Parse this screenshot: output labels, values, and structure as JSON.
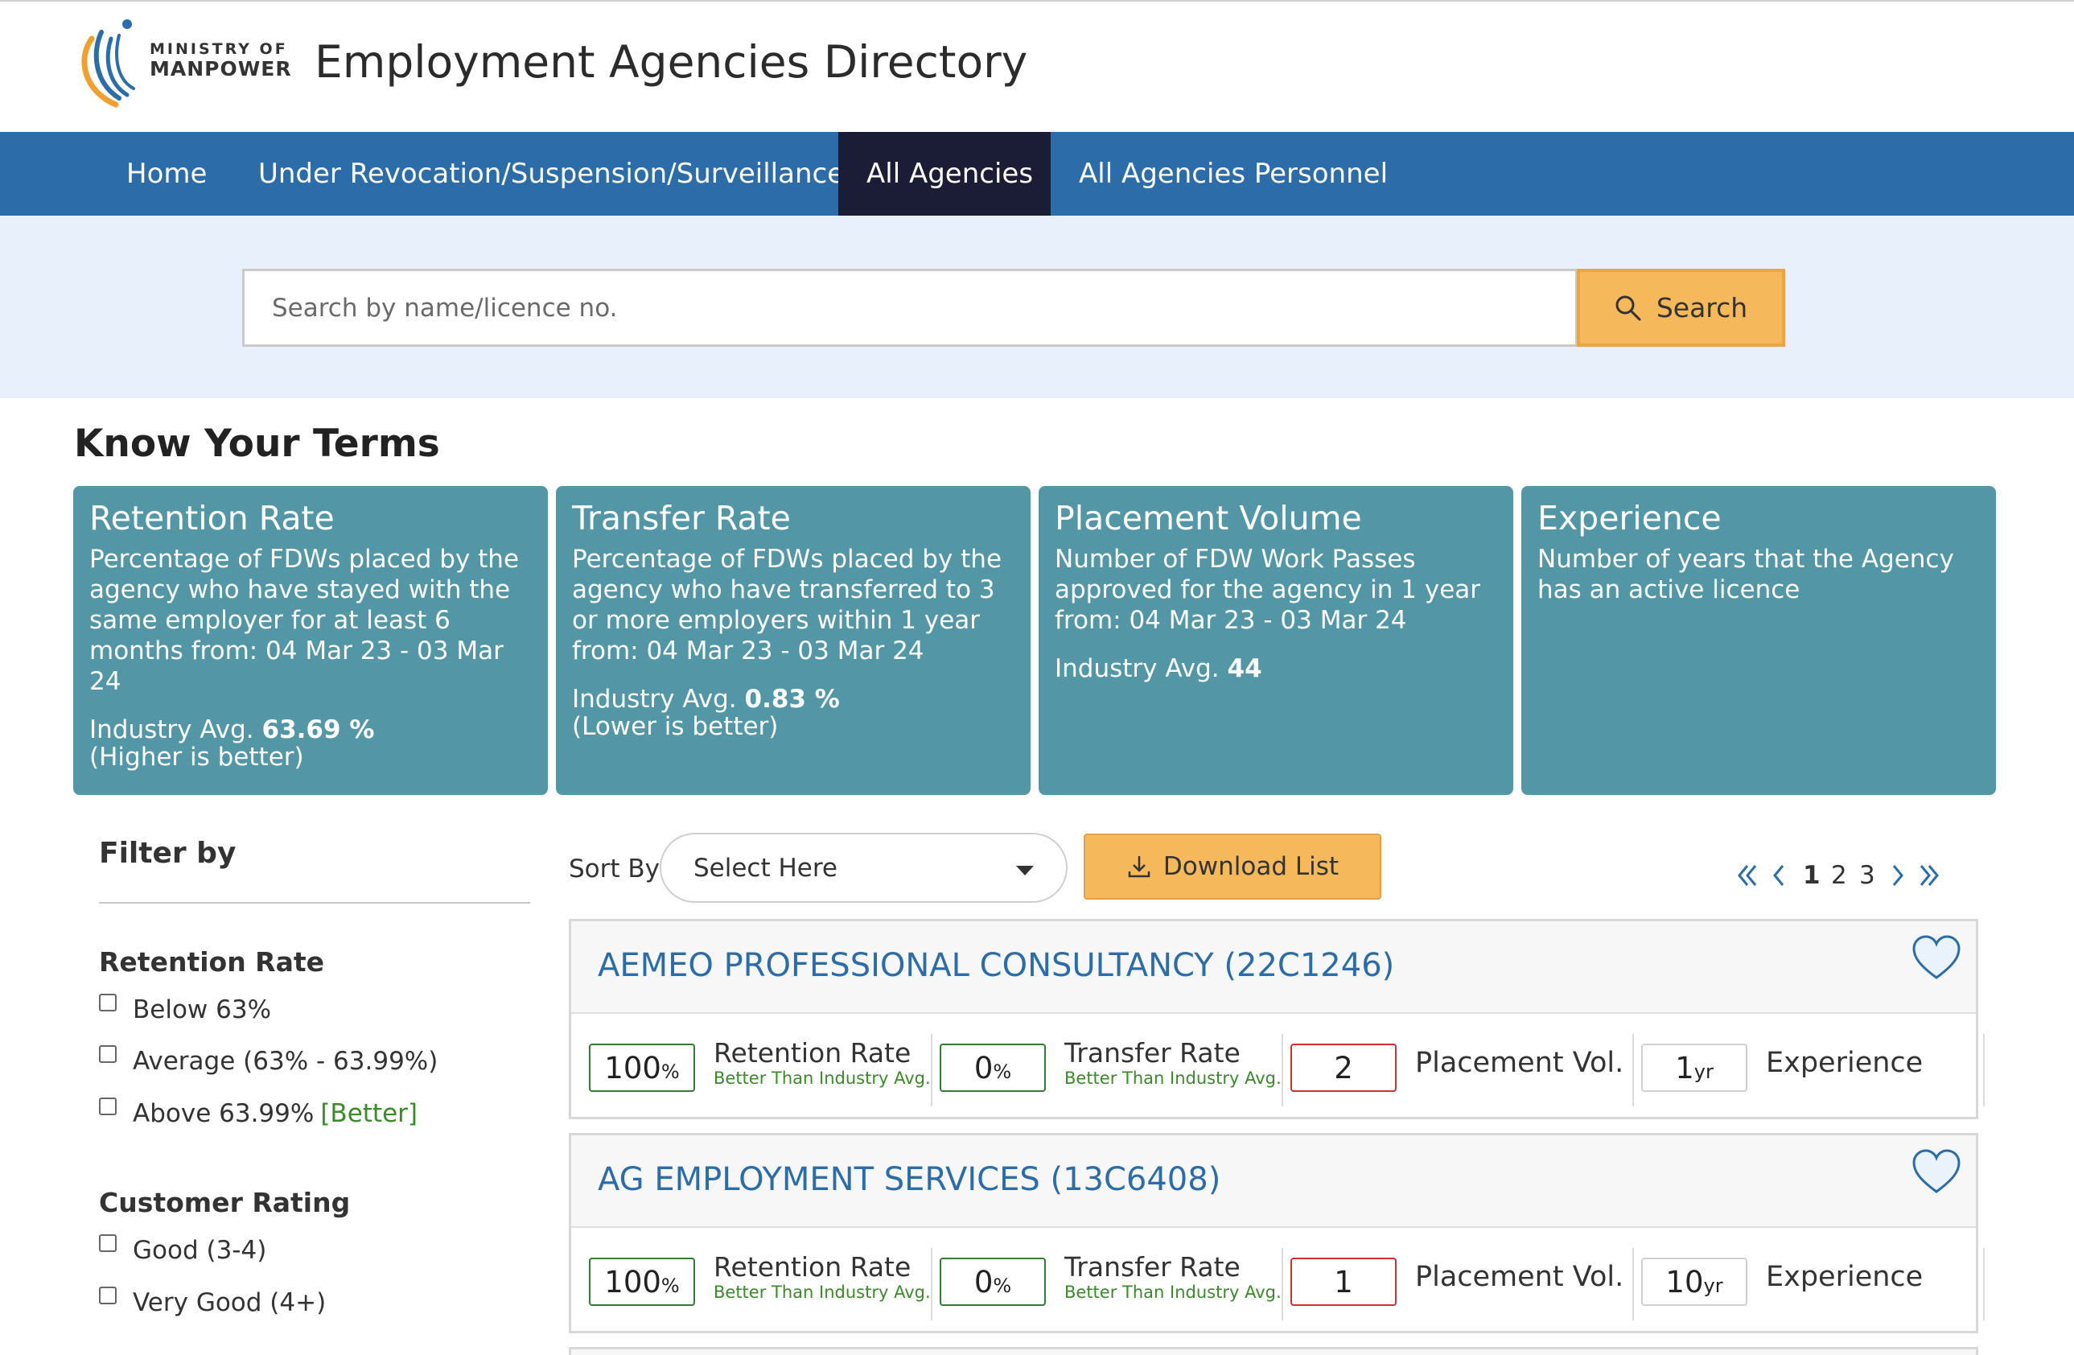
{
  "header": {
    "logo_line1": "MINISTRY OF",
    "logo_line2": "MANPOWER",
    "title": "Employment Agencies Directory"
  },
  "nav": {
    "items": [
      {
        "label": "Home"
      },
      {
        "label": "Under Revocation/Suspension/Surveillance"
      },
      {
        "label": "All Agencies"
      },
      {
        "label": "All Agencies Personnel"
      }
    ],
    "active": "All Agencies"
  },
  "search": {
    "placeholder": "Search by name/licence no.",
    "button_label": "Search",
    "icon": "search-icon"
  },
  "terms": {
    "section_title": "Know Your Terms",
    "cards": [
      {
        "title": "Retention Rate",
        "desc": "Percentage of FDWs placed by the agency who have stayed with the same employer for at least 6 months from: 04 Mar 23 - 03 Mar 24",
        "avg_label": "Industry Avg. ",
        "avg_value": "63.69 %",
        "note": "(Higher is better)"
      },
      {
        "title": "Transfer Rate",
        "desc": "Percentage of FDWs placed by the agency who have transferred to 3 or more employers within 1 year from: 04 Mar 23 - 03 Mar 24",
        "avg_label": "Industry Avg. ",
        "avg_value": "0.83 %",
        "note": "(Lower is better)"
      },
      {
        "title": "Placement Volume",
        "desc": "Number of FDW Work Passes approved for the agency in 1 year from: 04 Mar 23 - 03 Mar 24",
        "avg_label": "Industry Avg. ",
        "avg_value": "44",
        "note": ""
      },
      {
        "title": "Experience",
        "desc": "Number of years that the Agency has an active licence",
        "avg_label": "",
        "avg_value": "",
        "note": ""
      }
    ]
  },
  "filter": {
    "title": "Filter by",
    "groups": [
      {
        "title": "Retention Rate",
        "options": [
          {
            "label": "Below 63%",
            "extra": ""
          },
          {
            "label": "Average (63% - 63.99%)",
            "extra": ""
          },
          {
            "label": "Above 63.99% ",
            "extra": "[Better]"
          }
        ]
      },
      {
        "title": "Customer Rating",
        "options": [
          {
            "label": "Good (3-4)",
            "extra": ""
          },
          {
            "label": "Very Good (4+)",
            "extra": ""
          }
        ]
      }
    ]
  },
  "toolbar": {
    "sort_label": "Sort By",
    "sort_value": "Select Here",
    "download_label": "Download List",
    "pages": [
      "1",
      "2",
      "3"
    ],
    "current_page": "1"
  },
  "agencies": [
    {
      "name": "AEMEO PROFESSIONAL CONSULTANCY (22C1246)",
      "retention_value": "100",
      "retention_unit": "%",
      "retention_label": "Retention Rate",
      "retention_sub": "Better Than Industry Avg.",
      "transfer_value": "0",
      "transfer_unit": "%",
      "transfer_label": "Transfer Rate",
      "transfer_sub": "Better Than Industry Avg.",
      "placement_value": "2",
      "placement_label": "Placement Vol.",
      "experience_value": "1",
      "experience_unit": "yr",
      "experience_label": "Experience"
    },
    {
      "name": "AG EMPLOYMENT SERVICES (13C6408)",
      "retention_value": "100",
      "retention_unit": "%",
      "retention_label": "Retention Rate",
      "retention_sub": "Better Than Industry Avg.",
      "transfer_value": "0",
      "transfer_unit": "%",
      "transfer_label": "Transfer Rate",
      "transfer_sub": "Better Than Industry Avg.",
      "placement_value": "1",
      "placement_label": "Placement Vol.",
      "experience_value": "10",
      "experience_unit": "yr",
      "experience_label": "Experience"
    }
  ],
  "colors": {
    "nav_bg": "#2b6ca9",
    "nav_active": "#1a1d35",
    "accent_orange": "#f5b85b",
    "card_teal": "#5397a7",
    "link_blue": "#2b6ca9",
    "good_green": "#2e7d32",
    "bad_red": "#d32f2f"
  }
}
